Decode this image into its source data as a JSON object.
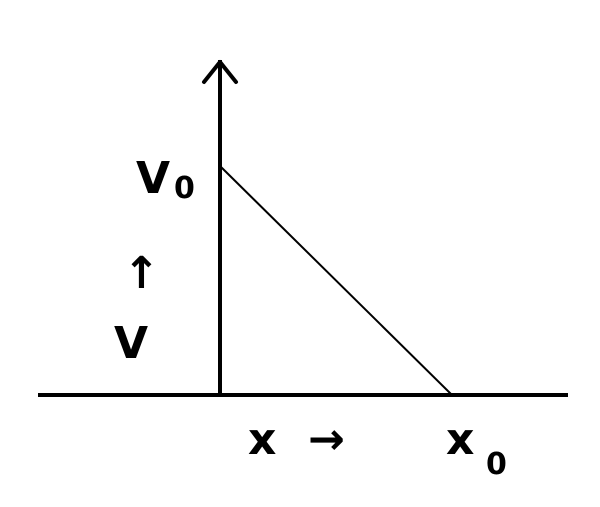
{
  "labels": {
    "v0_main": "V",
    "v0_sub": "0",
    "v_main": "V",
    "v_arrow": "↑",
    "x_main": "x",
    "x_arrow": "→",
    "x0_main": "x",
    "x0_sub": "0"
  },
  "colors": {
    "stroke": "#000000",
    "background": "#ffffff"
  }
}
